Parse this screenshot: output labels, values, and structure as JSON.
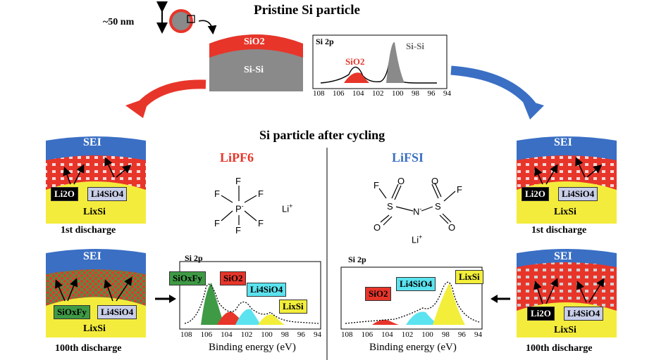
{
  "top": {
    "title": "Pristine Si particle",
    "size_label": "~50 nm",
    "shell_label": "SiO2",
    "core_label": "Si-Si",
    "spectrum": {
      "title": "Si 2p",
      "sio2": "SiO2",
      "sisi": "Si-Si",
      "ticks": [
        "108",
        "106",
        "104",
        "102",
        "100",
        "98",
        "96",
        "94"
      ]
    }
  },
  "middle_title": "Si particle after cycling",
  "lipf6": {
    "title": "LiPF6",
    "molecule": {
      "center": "P",
      "charge": "-",
      "ligand": "F",
      "counter_ion": "Li",
      "counter_charge": "+"
    }
  },
  "lifsi": {
    "title": "LiFSI",
    "molecule": {
      "f": "F",
      "s": "S",
      "o": "O",
      "n": "N",
      "charge": "-",
      "counter_ion": "Li",
      "counter_charge": "+"
    }
  },
  "left_upper": {
    "sei": "SEI",
    "li2o": "Li2O",
    "li4sio4": "Li4SiO4",
    "core": "LixSi",
    "caption": "1st discharge"
  },
  "left_lower": {
    "sei": "SEI",
    "siofy": "SiOxFy",
    "li4sio4": "Li4SiO4",
    "core": "LixSi",
    "caption": "100th discharge"
  },
  "right_upper": {
    "sei": "SEI",
    "li2o": "Li2O",
    "li4sio4": "Li4SiO4",
    "core": "LixSi",
    "caption": "1st discharge"
  },
  "right_lower": {
    "sei": "SEI",
    "li2o": "Li2O",
    "li4sio4": "Li4SiO4",
    "core": "LixSi",
    "caption": "100th discharge"
  },
  "spec_left": {
    "title": "Si 2p",
    "peaks": [
      "SiOxFy",
      "SiO2",
      "Li4SiO4",
      "LixSi"
    ],
    "xlabel": "Binding energy (eV)",
    "ticks": [
      "108",
      "106",
      "104",
      "102",
      "100",
      "98",
      "96",
      "94"
    ]
  },
  "spec_right": {
    "title": "Si 2p",
    "peaks": [
      "SiO2",
      "Li4SiO4",
      "LixSi"
    ],
    "xlabel": "Binding energy (eV)",
    "ticks": [
      "108",
      "106",
      "104",
      "102",
      "100",
      "98",
      "96",
      "94"
    ]
  },
  "colors": {
    "sei": "#3a6fc4",
    "shell": "#e8352a",
    "core": "#f4ec3c",
    "grey": "#8a8a8a",
    "red_arrow": "#e8352a",
    "blue_arrow": "#3a6fc4",
    "green": "#3f9a45",
    "cyan": "#5be3ef",
    "lavender": "#c9cfe8",
    "yellow": "#f2ee3a"
  }
}
